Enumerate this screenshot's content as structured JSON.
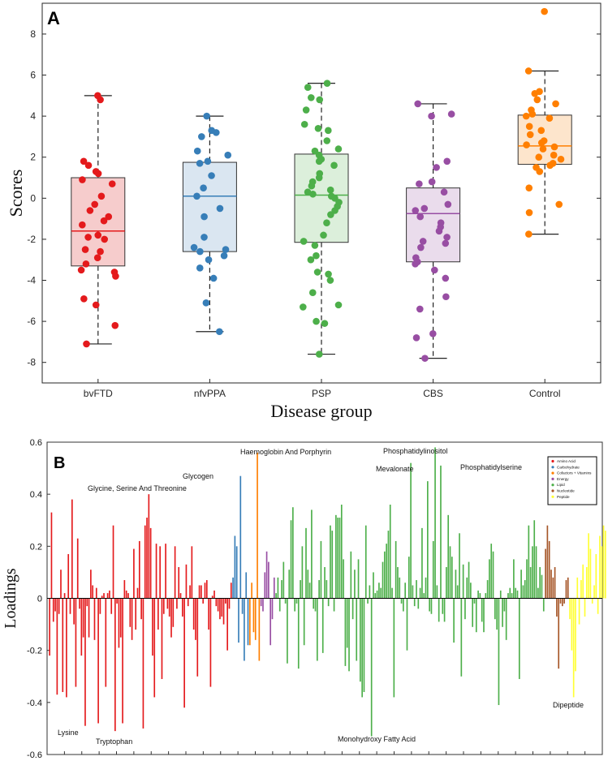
{
  "chart_data": [
    {
      "panel": "A",
      "type": "box",
      "xlabel": "Disease group",
      "ylabel": "Scores",
      "ylim": [
        -9,
        9.5
      ],
      "yticks": [
        -8,
        -6,
        -4,
        -2,
        0,
        2,
        4,
        6,
        8
      ],
      "groups": [
        {
          "name": "bvFTD",
          "color": "#e41a1c",
          "fill": "#f6cccc",
          "whisker_low": -7.1,
          "q1": -3.3,
          "median": -1.6,
          "q3": 1.0,
          "whisker_high": 5.0,
          "points": [
            5.0,
            4.8,
            1.8,
            1.6,
            1.3,
            1.2,
            0.9,
            0.7,
            0.1,
            -0.3,
            -0.6,
            -0.9,
            -1.1,
            -1.3,
            -1.8,
            -1.9,
            -2.0,
            -2.5,
            -2.6,
            -2.9,
            -3.2,
            -3.5,
            -3.6,
            -3.8,
            -4.9,
            -5.2,
            -6.2,
            -7.1
          ]
        },
        {
          "name": "nfvPPA",
          "color": "#377eb8",
          "fill": "#dae6f1",
          "whisker_low": -6.5,
          "q1": -2.6,
          "median": 0.1,
          "q3": 1.75,
          "whisker_high": 4.0,
          "points": [
            4.0,
            3.3,
            3.2,
            3.0,
            2.3,
            2.1,
            1.8,
            1.7,
            1.1,
            0.5,
            0.1,
            -0.5,
            -0.9,
            -1.9,
            -2.4,
            -2.5,
            -2.6,
            -2.8,
            -3.0,
            -3.4,
            -3.9,
            -5.1,
            -6.5
          ]
        },
        {
          "name": "PSP",
          "color": "#4daf4a",
          "fill": "#dcefdb",
          "whisker_low": -7.6,
          "q1": -2.15,
          "median": 0.15,
          "q3": 2.15,
          "whisker_high": 5.6,
          "points": [
            5.6,
            5.4,
            4.9,
            4.8,
            4.3,
            3.6,
            3.4,
            3.3,
            2.8,
            2.4,
            2.3,
            2.1,
            1.9,
            1.8,
            1.6,
            1.2,
            1.0,
            0.8,
            0.6,
            0.4,
            0.3,
            0.2,
            0.1,
            0.0,
            -0.2,
            -0.4,
            -0.6,
            -0.8,
            -1.2,
            -1.8,
            -2.1,
            -2.3,
            -2.8,
            -3.0,
            -3.6,
            -3.7,
            -4.0,
            -4.6,
            -5.2,
            -5.3,
            -6.0,
            -6.1,
            -7.6
          ]
        },
        {
          "name": "CBS",
          "color": "#984ea3",
          "fill": "#eadcec",
          "whisker_low": -7.8,
          "q1": -3.1,
          "median": -0.75,
          "q3": 0.5,
          "whisker_high": 4.6,
          "points": [
            4.6,
            4.1,
            4.0,
            1.8,
            1.5,
            0.8,
            0.7,
            0.3,
            -0.3,
            -0.5,
            -0.6,
            -0.9,
            -1.2,
            -1.4,
            -1.6,
            -1.9,
            -2.1,
            -2.2,
            -2.4,
            -2.9,
            -3.1,
            -3.2,
            -3.5,
            -3.9,
            -4.8,
            -5.4,
            -6.6,
            -6.8,
            -7.8
          ]
        },
        {
          "name": "Control",
          "color": "#ff7f00",
          "fill": "#fde5cc",
          "whisker_low": -1.75,
          "q1": 1.65,
          "median": 2.55,
          "q3": 4.05,
          "whisker_high": 6.2,
          "points": [
            9.1,
            6.2,
            5.2,
            5.1,
            4.8,
            4.6,
            4.3,
            4.1,
            4.0,
            3.9,
            3.5,
            3.3,
            3.1,
            2.8,
            2.7,
            2.6,
            2.5,
            2.4,
            2.1,
            2.0,
            1.9,
            1.7,
            1.6,
            1.5,
            1.3,
            0.5,
            -0.3,
            -0.7,
            -1.75
          ]
        }
      ]
    },
    {
      "panel": "B",
      "type": "bar",
      "ylabel": "Loadings",
      "ylim": [
        -0.6,
        0.6
      ],
      "yticks": [
        0.6,
        0.4,
        0.2,
        0,
        -0.2,
        -0.4,
        -0.6
      ],
      "ytick_labels": [
        "0.6",
        "0.4",
        "0.2",
        "0",
        "-0.2",
        "-0.4",
        "-0.6"
      ],
      "legend": [
        {
          "label": "Amino Acid",
          "color": "#e41a1c"
        },
        {
          "label": "Carbohydrate",
          "color": "#377eb8"
        },
        {
          "label": "Cofactors + Vitamins",
          "color": "#ff7f00"
        },
        {
          "label": "Energy",
          "color": "#984ea3"
        },
        {
          "label": "Lipid",
          "color": "#4daf4a"
        },
        {
          "label": "Nucleotide",
          "color": "#a65628"
        },
        {
          "label": "Peptide",
          "color": "#ffff33"
        }
      ],
      "series": [
        {
          "name": "Amino Acid",
          "color": "#e41a1c",
          "values": [
            -0.22,
            0.33,
            -0.09,
            -0.05,
            -0.37,
            -0.06,
            0.11,
            -0.36,
            0.02,
            -0.38,
            0.17,
            -0.06,
            0.38,
            -0.1,
            -0.34,
            0.23,
            -0.04,
            -0.22,
            -0.15,
            -0.49,
            -0.03,
            -0.15,
            0.11,
            0.05,
            -0.16,
            0.04,
            -0.48,
            -0.06,
            0.01,
            0.02,
            -0.34,
            0.02,
            0.03,
            -0.06,
            0.28,
            -0.51,
            -0.02,
            -0.19,
            -0.15,
            -0.48,
            0.07,
            0.03,
            0.02,
            -0.11,
            -0.16,
            0.19,
            -0.12,
            0.04,
            0.22,
            -0.08,
            -0.5,
            0.28,
            0.31,
            0.4,
            0.27,
            -0.22,
            -0.38,
            0.21,
            -0.12,
            0.2,
            -0.31,
            -0.06,
            0.21,
            -0.04,
            -0.07,
            -0.15,
            -0.11,
            0.2,
            -0.04,
            0.12,
            0.02,
            -0.07,
            -0.42,
            0.13,
            -0.03,
            0.05,
            0.2,
            -0.12,
            -0.16,
            -0.3,
            0.05,
            0.05,
            -0.02,
            0.06,
            0.07,
            -0.12,
            -0.34,
            0.01,
            0.03,
            -0.03,
            -0.05,
            -0.08,
            -0.07,
            -0.1,
            -0.02,
            -0.2,
            -0.04,
            0.06
          ]
        },
        {
          "name": "Carbohydrate",
          "color": "#377eb8",
          "values": [
            0.08,
            0.24,
            0.2,
            -0.17,
            0.47,
            -0.06,
            -0.24,
            0.1,
            -0.18
          ]
        },
        {
          "name": "Cofactors + Vitamins",
          "color": "#ff7f00",
          "values": [
            -0.18,
            0.06,
            -0.13,
            -0.16,
            0.56,
            -0.24
          ]
        },
        {
          "name": "Energy",
          "color": "#984ea3",
          "values": [
            -0.03,
            -0.05,
            0.1,
            0.18,
            0.14,
            -0.18,
            -0.08,
            0.08
          ]
        },
        {
          "name": "Lipid",
          "color": "#4daf4a",
          "values": [
            0.02,
            0.08,
            -0.05,
            0.07,
            0.14,
            -0.02,
            -0.25,
            0.11,
            0.3,
            0.35,
            -0.05,
            -0.02,
            -0.27,
            0.07,
            0.2,
            -0.18,
            0.27,
            0.11,
            0.06,
            0.34,
            -0.04,
            -0.05,
            -0.24,
            0.07,
            0.22,
            -0.21,
            0.12,
            0.07,
            -0.03,
            0.28,
            0.26,
            -0.05,
            0.32,
            0.31,
            0.31,
            0.36,
            0.15,
            -0.26,
            -0.19,
            -0.28,
            0.18,
            -0.08,
            0.11,
            -0.24,
            0.15,
            -0.32,
            -0.38,
            -0.36,
            0.28,
            -0.02,
            0.05,
            -0.53,
            0.1,
            0.02,
            0.03,
            0.06,
            0.04,
            0.14,
            0.18,
            0.21,
            0.26,
            0.36,
            0.04,
            -0.38,
            0.22,
            0.12,
            0.08,
            -0.02,
            -0.05,
            0.06,
            -0.2,
            0.16,
            0.52,
            0.05,
            -0.03,
            0.07,
            -0.04,
            0.04,
            0.27,
            0.02,
            0.08,
            0.45,
            -0.05,
            -0.06,
            0.22,
            0.58,
            0.05,
            -0.09,
            0.51,
            -0.06,
            -0.09,
            0.12,
            0.32,
            0.2,
            0.16,
            -0.17,
            0.11,
            0.05,
            0.25,
            -0.3,
            0.13,
            -0.08,
            0.08,
            0.14,
            0.06,
            -0.11,
            -0.02,
            -0.13,
            0.03,
            0.02,
            -0.09,
            -0.13,
            0.02,
            0.07,
            0.15,
            0.21,
            0.18,
            -0.08,
            -0.12,
            -0.41,
            0.03,
            -0.11,
            -0.05,
            -0.16,
            0.02,
            0.04,
            0.02,
            0.15,
            0.04,
            0.03,
            -0.31,
            0.11,
            0.05,
            0.07,
            0.15,
            0.28,
            0.12,
            0.2,
            0.3,
            0.2,
            0.04,
            0.12,
            0.09,
            -0.05
          ]
        },
        {
          "name": "Nucleotide",
          "color": "#a65628",
          "values": [
            0.19,
            0.28,
            0.22,
            0.11,
            0.08,
            0.12,
            -0.07,
            -0.27,
            -0.02,
            -0.03,
            -0.02,
            0.07,
            0.08
          ]
        },
        {
          "name": "Peptide",
          "color": "#ffff33",
          "values": [
            -0.08,
            -0.2,
            -0.38,
            -0.28,
            0.08,
            -0.1,
            0.07,
            0.13,
            -0.07,
            0.12,
            0.25,
            0.19,
            -0.02,
            0.05,
            0.17,
            -0.06,
            0.24,
            0.2,
            0.28,
            0.26
          ]
        }
      ],
      "annotations": [
        {
          "text": "Haemoglobin And Porphyrin"
        },
        {
          "text": "Glycogen"
        },
        {
          "text": "Glycine, Serine And Threonine"
        },
        {
          "text": "Phosphatidylinositol"
        },
        {
          "text": "Mevalonate"
        },
        {
          "text": "Phosphatidylserine"
        },
        {
          "text": "Lysine"
        },
        {
          "text": "Tryptophan"
        },
        {
          "text": "Monohydroxy Fatty Acid"
        },
        {
          "text": "Dipeptide"
        }
      ]
    }
  ]
}
